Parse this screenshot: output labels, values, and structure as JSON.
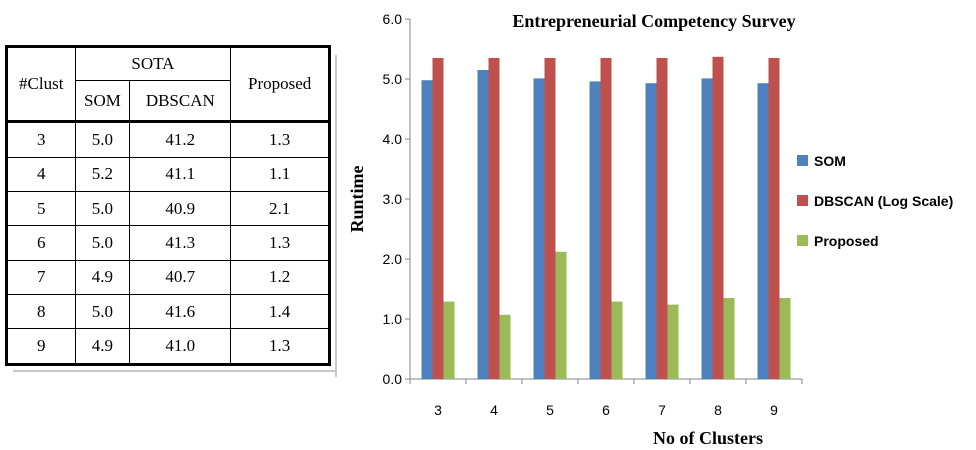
{
  "table": {
    "header_clusters": "#Clust",
    "header_sota": "SOTA",
    "header_proposed": "Proposed",
    "header_som": "SOM",
    "header_dbscan": "DBSCAN",
    "rows": [
      [
        "3",
        "5.0",
        "41.2",
        "1.3"
      ],
      [
        "4",
        "5.2",
        "41.1",
        "1.1"
      ],
      [
        "5",
        "5.0",
        "40.9",
        "2.1"
      ],
      [
        "6",
        "5.0",
        "41.3",
        "1.3"
      ],
      [
        "7",
        "4.9",
        "40.7",
        "1.2"
      ],
      [
        "8",
        "5.0",
        "41.6",
        "1.4"
      ],
      [
        "9",
        "4.9",
        "41.0",
        "1.3"
      ]
    ]
  },
  "chart_data": {
    "type": "bar",
    "title": "Entrepreneurial Competency Survey",
    "xlabel": "No of Clusters",
    "ylabel": "Runtime",
    "categories": [
      "3",
      "4",
      "5",
      "6",
      "7",
      "8",
      "9"
    ],
    "ylim": [
      0,
      6
    ],
    "yticks": [
      "0.0",
      "1.0",
      "2.0",
      "3.0",
      "4.0",
      "5.0",
      "6.0"
    ],
    "grid": false,
    "legend_position": "right",
    "series": [
      {
        "name": "SOM",
        "color": "#4F81BD",
        "values": [
          4.98,
          5.15,
          5.01,
          4.96,
          4.93,
          5.01,
          4.93
        ]
      },
      {
        "name": "DBSCAN (Log Scale)",
        "color": "#C0504D",
        "values": [
          5.35,
          5.35,
          5.35,
          5.35,
          5.35,
          5.37,
          5.35
        ]
      },
      {
        "name": "Proposed",
        "color": "#9BBB59",
        "values": [
          1.29,
          1.07,
          2.12,
          1.29,
          1.24,
          1.35,
          1.35
        ]
      }
    ]
  }
}
